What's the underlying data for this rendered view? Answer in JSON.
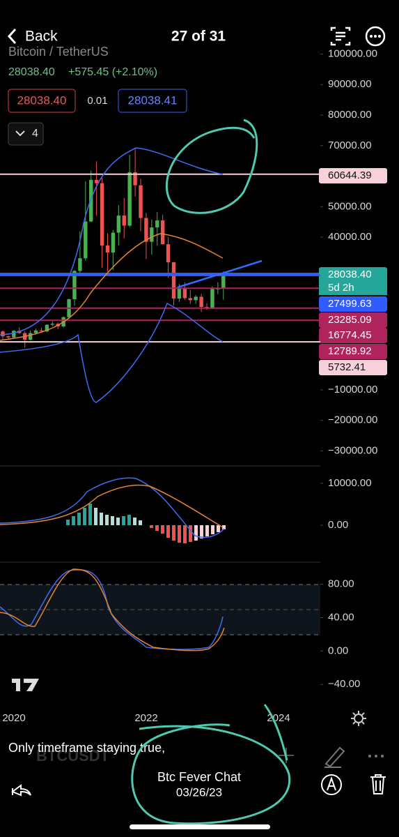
{
  "header": {
    "back": "Back",
    "counter": "27 of 31"
  },
  "chart_data": {
    "type": "candlestick",
    "symbol": "Bitcoin / TetherUS",
    "last_price": "28038.40",
    "change": "+575.45 (+2.10%)",
    "sell_price": "28038.40",
    "spread": "0.01",
    "buy_price": "28038.41",
    "indicator_count": "4",
    "watermark": "BTCUSDT",
    "countdown": "5d 2h",
    "up_color": "#4caf50",
    "down_color": "#ef5350",
    "x_labels": [
      "2020",
      "2022",
      "2024"
    ],
    "candles": {
      "open": [
        9150,
        7550,
        7190,
        9350,
        8600,
        6420,
        8620,
        9450,
        9140,
        11330,
        11650,
        10780,
        13800,
        19700,
        28950,
        33100,
        45150,
        58800,
        57700,
        37300,
        35000,
        41500,
        47100,
        43800,
        61300,
        57000,
        46300,
        38500,
        43200,
        45500,
        37700,
        31800,
        19900,
        23300,
        20050,
        19400,
        20500,
        17150,
        16550,
        23100,
        23150
      ],
      "high": [
        9500,
        7750,
        9580,
        10500,
        9200,
        9470,
        10070,
        10380,
        11450,
        12470,
        12070,
        14100,
        19880,
        29300,
        41950,
        58350,
        61800,
        64850,
        59500,
        41300,
        42400,
        50500,
        52900,
        67000,
        69000,
        59100,
        47990,
        45800,
        48200,
        47400,
        40000,
        31900,
        24700,
        25200,
        22800,
        21100,
        21450,
        18400,
        23950,
        25250,
        28800
      ],
      "low": [
        6500,
        6430,
        6850,
        8450,
        3800,
        6150,
        8100,
        8850,
        8900,
        10900,
        9880,
        10400,
        13200,
        17600,
        28100,
        32300,
        44950,
        47000,
        30000,
        28800,
        29300,
        37300,
        39600,
        43300,
        53300,
        42000,
        32900,
        34300,
        37200,
        37600,
        26700,
        17600,
        18800,
        19500,
        18150,
        18200,
        15500,
        16250,
        16500,
        21350,
        19550
      ],
      "close": [
        7550,
        7190,
        9350,
        8600,
        6420,
        8620,
        9450,
        9140,
        11330,
        11650,
        10780,
        13800,
        19700,
        28950,
        33100,
        45150,
        58800,
        57700,
        37300,
        35000,
        41500,
        47100,
        43800,
        61300,
        57000,
        46300,
        38500,
        43200,
        45500,
        37700,
        31800,
        19900,
        23300,
        20050,
        19400,
        20500,
        17150,
        16550,
        23100,
        23150,
        28038.4
      ]
    },
    "ylim": [
      -34000,
      104000
    ],
    "yticks": [
      {
        "value": 100000,
        "label": "100000.00"
      },
      {
        "value": 90000,
        "label": "90000.00"
      },
      {
        "value": 80000,
        "label": "80000.00"
      },
      {
        "value": 70000,
        "label": "70000.00"
      },
      {
        "value": 50000,
        "label": "50000.00"
      },
      {
        "value": 40000,
        "label": "40000.00"
      },
      {
        "value": -10000,
        "label": "−10000.00"
      },
      {
        "value": -20000,
        "label": "−20000.00"
      },
      {
        "value": -30000,
        "label": "−30000.00"
      }
    ],
    "price_lines": [
      {
        "value": 60644.39,
        "label": "60644.39",
        "color": "#f8d0da"
      },
      {
        "value": 28038.4,
        "label": "28038.40",
        "color": "#2f5bff"
      },
      {
        "value": 27499.63,
        "label": "27499.63",
        "color": "#2f5bff"
      },
      {
        "value": 23285.09,
        "label": "23285.09",
        "color": "#b0245e"
      },
      {
        "value": 16774.45,
        "label": "16774.45",
        "color": "#b0245e"
      },
      {
        "value": 12789.92,
        "label": "12789.92",
        "color": "#b0245e"
      },
      {
        "value": 5732.41,
        "label": "5732.41",
        "color": "#f8d0da"
      }
    ],
    "macd": {
      "ylim": [
        -7800,
        13800
      ],
      "yticks": [
        {
          "value": 10000,
          "label": "10000.00"
        },
        {
          "value": 0,
          "label": "0.00"
        }
      ]
    },
    "stoch": {
      "ylim": [
        -59,
        103
      ],
      "yticks": [
        {
          "value": 80,
          "label": "80.00"
        },
        {
          "value": 40,
          "label": "40.00"
        },
        {
          "value": 0,
          "label": "0.00"
        },
        {
          "value": -40,
          "label": "−40.00"
        }
      ]
    }
  },
  "caption": "Only timeframe staying true,",
  "footer": {
    "sender": "Btc Fever Chat",
    "date": "03/26/23"
  }
}
